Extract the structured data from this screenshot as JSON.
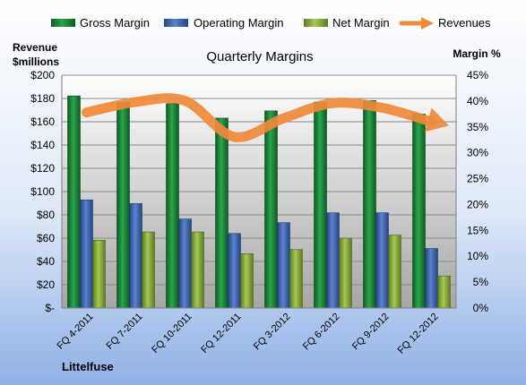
{
  "chart_data": {
    "type": "bar",
    "title": "Quarterly Margins",
    "company": "Littelfuse",
    "left_axis_title_line1": "Revenue",
    "left_axis_title_line2": "$millions",
    "right_axis_title": "Margin %",
    "categories": [
      "FQ 4-2011",
      "FQ 7-2011",
      "FQ 10-2011",
      "FQ 12-2011",
      "FQ 3-2012",
      "FQ 6-2012",
      "FQ 9-2012",
      "FQ 12-2012"
    ],
    "left_ylim": [
      0,
      200
    ],
    "left_ticks": [
      0,
      20,
      40,
      60,
      80,
      100,
      120,
      140,
      160,
      180,
      200
    ],
    "left_tick_labels": [
      "$-",
      "$20",
      "$40",
      "$60",
      "$80",
      "$100",
      "$120",
      "$140",
      "$160",
      "$180",
      "$200"
    ],
    "right_ylim": [
      0,
      45
    ],
    "right_ticks": [
      0,
      5,
      10,
      15,
      20,
      25,
      30,
      35,
      40,
      45
    ],
    "right_tick_labels": [
      "0%",
      "5%",
      "10%",
      "15%",
      "20%",
      "25%",
      "30%",
      "35%",
      "40%",
      "45%"
    ],
    "grid": true,
    "legend_position": "top",
    "series": [
      {
        "name": "Gross Margin",
        "axis": "right",
        "color": "#1e8a3c",
        "values": [
          41,
          39.7,
          39.5,
          36.7,
          38.1,
          39.8,
          40.1,
          37.5
        ]
      },
      {
        "name": "Operating Margin",
        "axis": "right",
        "color": "#3f67b8",
        "values": [
          20.9,
          20.2,
          17.2,
          14.4,
          16.5,
          18.4,
          18.4,
          11.5
        ]
      },
      {
        "name": "Net Margin",
        "axis": "right",
        "color": "#8fb33e",
        "values": [
          13.1,
          14.7,
          14.7,
          10.5,
          11.3,
          13.5,
          14.1,
          6.2
        ]
      },
      {
        "name": "Revenues",
        "axis": "left",
        "type": "line",
        "color": "#ef8a3a",
        "values": [
          168,
          177,
          178,
          147,
          163,
          176,
          172,
          160
        ]
      }
    ]
  }
}
